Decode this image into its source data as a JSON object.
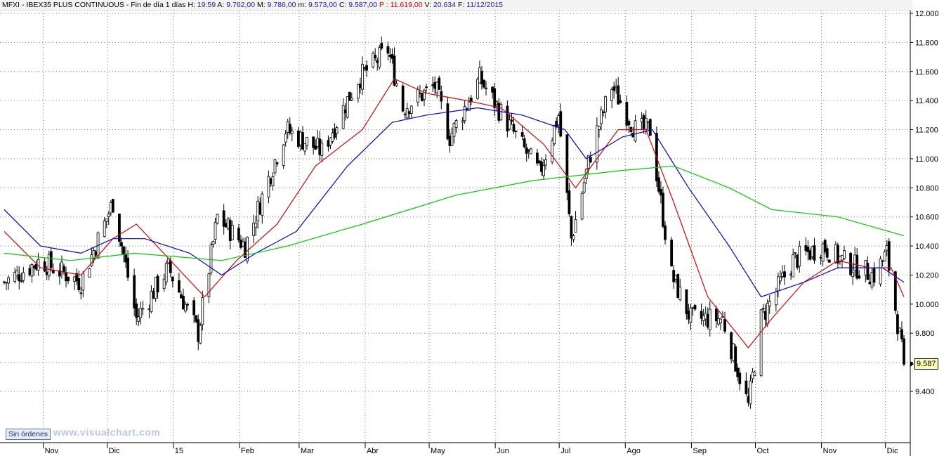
{
  "header": {
    "symbol": "MFXI - IBEX35 PLUS CONTINUOUS - Fin de día 1 días",
    "h_label": "H:",
    "h_value": "19:59",
    "a_label": "A:",
    "a_value": "9.762,00",
    "m_label": "M:",
    "m_value": "9.786,00",
    "min_label": "m:",
    "min_value": "9.573,00",
    "c_label": "C:",
    "c_value": "9.587,00",
    "p_label": "P :",
    "p_value": "11.619,00",
    "v_label": "V:",
    "v_value": "20.634",
    "f_label": "F:",
    "f_value": "11/12/2015"
  },
  "toolbar": {
    "orders_button": "Sin órdenes"
  },
  "watermark": "www.visualchart.com",
  "last_price_tag": "9.587",
  "colors": {
    "candle": "#000000",
    "ma_short": "#e00000",
    "ma_mid": "#0000dd",
    "ma_long": "#00cc00",
    "grid": "#808080",
    "price_tag_bg": "#ffffb0"
  },
  "chart_data": {
    "type": "candlestick",
    "title": "MFXI - IBEX35 PLUS CONTINUOUS",
    "y_axis": {
      "side": "right",
      "ticks": [
        "12.000",
        "11.800",
        "11.600",
        "11.400",
        "11.200",
        "11.000",
        "10.800",
        "10.600",
        "10.400",
        "10.200",
        "10.000",
        "9.800",
        "9.400"
      ],
      "tick_values": [
        12000,
        11800,
        11600,
        11400,
        11200,
        11000,
        10800,
        10600,
        10400,
        10200,
        10000,
        9800,
        9400
      ],
      "range": [
        9220,
        12000
      ]
    },
    "x_axis": {
      "tick_labels": [
        "Nov",
        "Dic",
        "15",
        "Feb",
        "Mar",
        "Abr",
        "May",
        "Jun",
        "Jul",
        "Ago",
        "Sep",
        "Oct",
        "Nov",
        "Dic"
      ],
      "range": [
        "2014-10-15",
        "2015-12-11"
      ]
    },
    "grid": true,
    "candles_monthly_anchors": [
      {
        "x": "2014-10-15",
        "close": 10150
      },
      {
        "x": "2014-11-01",
        "close": 10300
      },
      {
        "x": "2014-11-20",
        "close": 10150
      },
      {
        "x": "2014-12-05",
        "close": 10700
      },
      {
        "x": "2014-12-16",
        "close": 9900
      },
      {
        "x": "2014-12-31",
        "close": 10250
      },
      {
        "x": "2015-01-14",
        "close": 9800
      },
      {
        "x": "2015-01-23",
        "close": 10600
      },
      {
        "x": "2015-02-05",
        "close": 10400
      },
      {
        "x": "2015-02-24",
        "close": 11200
      },
      {
        "x": "2015-03-13",
        "close": 11050
      },
      {
        "x": "2015-03-30",
        "close": 11550
      },
      {
        "x": "2015-04-13",
        "close": 11750
      },
      {
        "x": "2015-04-20",
        "close": 11350
      },
      {
        "x": "2015-05-05",
        "close": 11500
      },
      {
        "x": "2015-05-12",
        "close": 11150
      },
      {
        "x": "2015-05-26",
        "close": 11550
      },
      {
        "x": "2015-06-10",
        "close": 11200
      },
      {
        "x": "2015-06-23",
        "close": 10900
      },
      {
        "x": "2015-07-02",
        "close": 11300
      },
      {
        "x": "2015-07-08",
        "close": 10450
      },
      {
        "x": "2015-07-18",
        "close": 11100
      },
      {
        "x": "2015-07-27",
        "close": 11500
      },
      {
        "x": "2015-08-07",
        "close": 11200
      },
      {
        "x": "2015-08-14",
        "close": 11200
      },
      {
        "x": "2015-08-24",
        "close": 10200
      },
      {
        "x": "2015-09-02",
        "close": 9900
      },
      {
        "x": "2015-09-17",
        "close": 9900
      },
      {
        "x": "2015-09-29",
        "close": 9300
      },
      {
        "x": "2015-10-05",
        "close": 9900
      },
      {
        "x": "2015-10-20",
        "close": 10300
      },
      {
        "x": "2015-11-03",
        "close": 10400
      },
      {
        "x": "2015-11-12",
        "close": 10300
      },
      {
        "x": "2015-11-27",
        "close": 10200
      },
      {
        "x": "2015-12-03",
        "close": 10350
      },
      {
        "x": "2015-12-11",
        "close": 9587
      }
    ],
    "series": [
      {
        "name": "",
        "color": "#e00000",
        "values": [
          [
            "2014-10-15",
            10500
          ],
          [
            "2014-11-01",
            10250
          ],
          [
            "2014-11-20",
            10200
          ],
          [
            "2014-12-05",
            10450
          ],
          [
            "2014-12-16",
            10550
          ],
          [
            "2015-01-01",
            10300
          ],
          [
            "2015-01-17",
            10050
          ],
          [
            "2015-02-01",
            10300
          ],
          [
            "2015-02-20",
            10550
          ],
          [
            "2015-03-10",
            10950
          ],
          [
            "2015-04-01",
            11200
          ],
          [
            "2015-04-16",
            11550
          ],
          [
            "2015-05-01",
            11450
          ],
          [
            "2015-05-20",
            11400
          ],
          [
            "2015-06-05",
            11350
          ],
          [
            "2015-06-25",
            11100
          ],
          [
            "2015-07-10",
            10800
          ],
          [
            "2015-07-30",
            11200
          ],
          [
            "2015-08-12",
            11200
          ],
          [
            "2015-08-25",
            10700
          ],
          [
            "2015-09-10",
            10050
          ],
          [
            "2015-09-29",
            9700
          ],
          [
            "2015-10-10",
            9900
          ],
          [
            "2015-10-25",
            10150
          ],
          [
            "2015-11-10",
            10300
          ],
          [
            "2015-11-25",
            10250
          ],
          [
            "2015-12-05",
            10250
          ],
          [
            "2015-12-11",
            10050
          ]
        ]
      },
      {
        "name": "",
        "color": "#0000dd",
        "values": [
          [
            "2014-10-15",
            10650
          ],
          [
            "2014-11-01",
            10400
          ],
          [
            "2014-11-20",
            10350
          ],
          [
            "2014-12-05",
            10450
          ],
          [
            "2014-12-20",
            10450
          ],
          [
            "2015-01-10",
            10350
          ],
          [
            "2015-01-25",
            10200
          ],
          [
            "2015-02-10",
            10350
          ],
          [
            "2015-03-01",
            10500
          ],
          [
            "2015-03-25",
            10950
          ],
          [
            "2015-04-15",
            11250
          ],
          [
            "2015-05-01",
            11300
          ],
          [
            "2015-05-25",
            11350
          ],
          [
            "2015-06-15",
            11300
          ],
          [
            "2015-07-05",
            11200
          ],
          [
            "2015-07-15",
            11000
          ],
          [
            "2015-08-01",
            11150
          ],
          [
            "2015-08-15",
            11200
          ],
          [
            "2015-09-01",
            10800
          ],
          [
            "2015-09-20",
            10400
          ],
          [
            "2015-10-05",
            10050
          ],
          [
            "2015-10-25",
            10150
          ],
          [
            "2015-11-10",
            10250
          ],
          [
            "2015-12-01",
            10250
          ],
          [
            "2015-12-11",
            10150
          ]
        ]
      },
      {
        "name": "",
        "color": "#00cc00",
        "values": [
          [
            "2014-10-15",
            10350
          ],
          [
            "2014-11-15",
            10300
          ],
          [
            "2014-12-15",
            10350
          ],
          [
            "2015-01-25",
            10300
          ],
          [
            "2015-02-25",
            10400
          ],
          [
            "2015-04-01",
            10550
          ],
          [
            "2015-05-15",
            10750
          ],
          [
            "2015-06-20",
            10850
          ],
          [
            "2015-08-01",
            10920
          ],
          [
            "2015-08-25",
            10950
          ],
          [
            "2015-09-20",
            10800
          ],
          [
            "2015-10-10",
            10650
          ],
          [
            "2015-11-10",
            10600
          ],
          [
            "2015-12-11",
            10470
          ]
        ]
      }
    ]
  }
}
